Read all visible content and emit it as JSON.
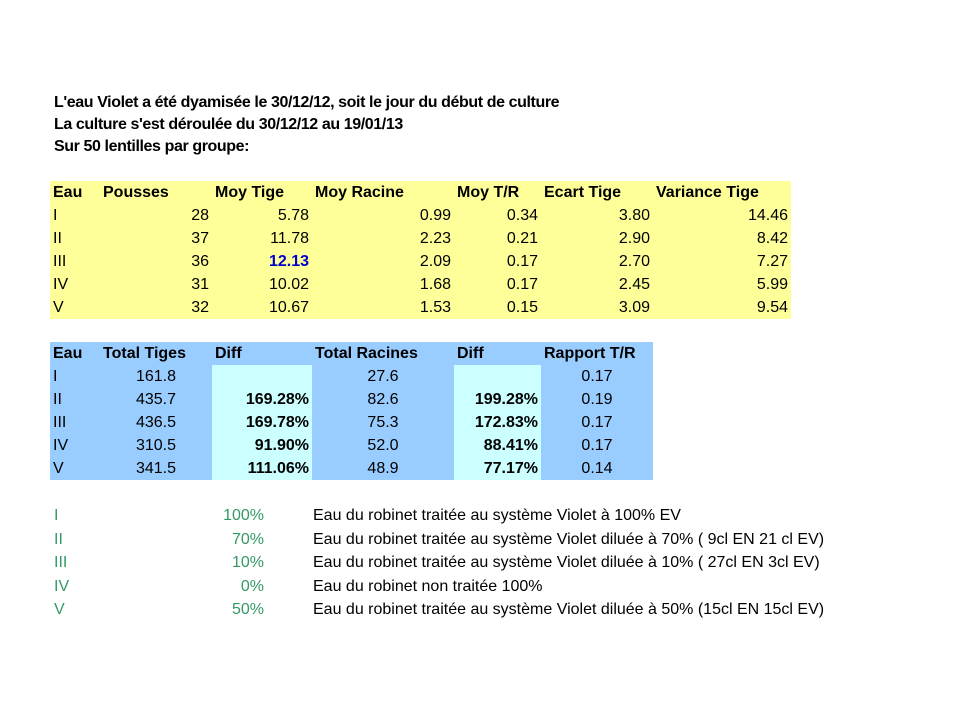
{
  "intro": [
    "L'eau Violet a été dyamisée le 30/12/12, soit le jour du début de culture",
    "La culture s'est déroulée du 30/12/12 au 19/01/13",
    "Sur 50 lentilles par groupe:"
  ],
  "table1": {
    "headers": [
      "Eau",
      "Pousses",
      "Moy Tige",
      "Moy Racine",
      "Moy T/R",
      "Ecart Tige",
      "Variance Tige"
    ],
    "rows": [
      [
        "I",
        "28",
        "5.78",
        "0.99",
        "0.34",
        "3.80",
        "14.46"
      ],
      [
        "II",
        "37",
        "11.78",
        "2.23",
        "0.21",
        "2.90",
        "8.42"
      ],
      [
        "III",
        "36",
        "12.13",
        "2.09",
        "0.17",
        "2.70",
        "7.27"
      ],
      [
        "IV",
        "31",
        "10.02",
        "1.68",
        "0.17",
        "2.45",
        "5.99"
      ],
      [
        "V",
        "32",
        "10.67",
        "1.53",
        "0.15",
        "3.09",
        "9.54"
      ]
    ],
    "highlight_color": "#0000cc"
  },
  "table2": {
    "headers": [
      "Eau",
      "Total Tiges",
      "Diff",
      "Total Racines",
      "Diff",
      "Rapport T/R"
    ],
    "rows": [
      [
        "I",
        "161.8",
        "",
        "27.6",
        "",
        "0.17"
      ],
      [
        "II",
        "435.7",
        "169.28%",
        "82.6",
        "199.28%",
        "0.19"
      ],
      [
        "III",
        "436.5",
        "169.78%",
        "75.3",
        "172.83%",
        "0.17"
      ],
      [
        "IV",
        "310.5",
        "91.90%",
        "52.0",
        "88.41%",
        "0.17"
      ],
      [
        "V",
        "341.5",
        "111.06%",
        "48.9",
        "77.17%",
        "0.14"
      ]
    ]
  },
  "legend": [
    {
      "code": "I",
      "pct": "100%",
      "desc": "Eau du robinet traitée au système Violet à 100% EV"
    },
    {
      "code": "II",
      "pct": "70%",
      "desc": "Eau du robinet traitée au système Violet diluée à 70% ( 9cl EN 21 cl EV)"
    },
    {
      "code": "III",
      "pct": "10%",
      "desc": "Eau du robinet traitée au système Violet diluée à 10% ( 27cl EN 3cl EV)"
    },
    {
      "code": "IV",
      "pct": "0%",
      "desc": "Eau du robinet non traitée 100%"
    },
    {
      "code": "V",
      "pct": "50%",
      "desc": "Eau du robinet traitée au système Violet diluée à 50% (15cl EN 15cl EV)"
    }
  ],
  "colors": {
    "table1_bg": "#ffff99",
    "table2_header_bg": "#99ccff",
    "table2_diff_bg": "#ccffff",
    "legend_code": "#339966"
  }
}
